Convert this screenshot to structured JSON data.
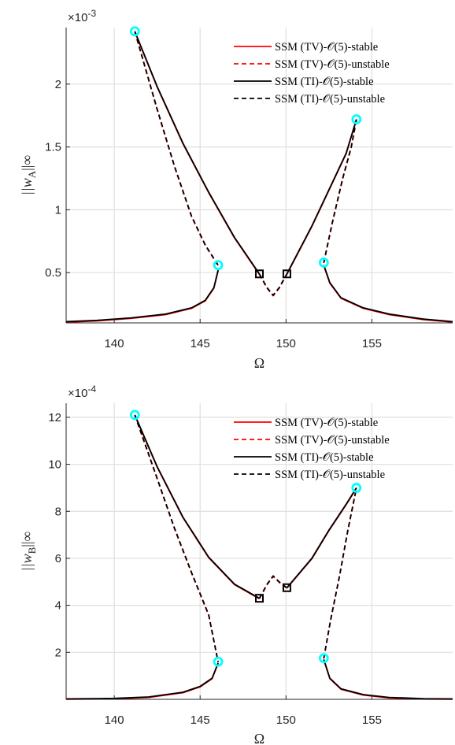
{
  "chart_data": [
    {
      "type": "line",
      "xlabel": "Ω",
      "ylabel": "||w_A||∞",
      "ylabel_main": "||w",
      "ylabel_sub": "A",
      "ylabel_tail": "||∞",
      "y_exponent_base": "×10",
      "y_exponent_power": "-3",
      "xlim": [
        137.2,
        159.7
      ],
      "ylim": [
        0.1,
        2.45
      ],
      "xticks": [
        140,
        145,
        150,
        155
      ],
      "yticks": [
        0.5,
        1,
        1.5,
        2
      ],
      "ytick_labels": [
        "0.5",
        "1",
        "1.5",
        "2"
      ],
      "grid": true,
      "legend_placement": "top-right",
      "legend": [
        {
          "label": "SSM (TV)-𝒪(5)-stable",
          "color": "#ff0000",
          "dash": "solid"
        },
        {
          "label": "SSM (TV)-𝒪(5)-unstable",
          "color": "#ff0000",
          "dash": "dashed"
        },
        {
          "label": "SSM (TI)-𝒪(5)-stable",
          "color": "#000000",
          "dash": "solid"
        },
        {
          "label": "SSM (TI)-𝒪(5)-unstable",
          "color": "#000000",
          "dash": "dashed"
        }
      ],
      "series": [
        {
          "name": "SSM (TV)-𝒪(5)-stable",
          "color": "#ff0000",
          "dash": "solid",
          "offset": [
            0,
            0.004
          ],
          "segments": [
            [
              [
                137.2,
                0.11
              ],
              [
                139,
                0.12
              ],
              [
                141,
                0.14
              ],
              [
                143,
                0.17
              ],
              [
                144.5,
                0.22
              ],
              [
                145.3,
                0.28
              ],
              [
                145.8,
                0.38
              ],
              [
                146.05,
                0.52
              ]
            ],
            [
              [
                141.2,
                2.42
              ],
              [
                142.5,
                1.98
              ],
              [
                144,
                1.53
              ],
              [
                145.5,
                1.14
              ],
              [
                147,
                0.78
              ],
              [
                148.45,
                0.49
              ]
            ],
            [
              [
                150.05,
                0.49
              ],
              [
                151.5,
                0.87
              ],
              [
                152.5,
                1.16
              ],
              [
                153.5,
                1.45
              ],
              [
                154.1,
                1.72
              ]
            ],
            [
              [
                152.2,
                0.56
              ],
              [
                152.55,
                0.42
              ],
              [
                153.2,
                0.3
              ],
              [
                154.5,
                0.22
              ],
              [
                156,
                0.17
              ],
              [
                158,
                0.13
              ],
              [
                159.7,
                0.11
              ]
            ]
          ]
        },
        {
          "name": "SSM (TV)-𝒪(5)-unstable",
          "color": "#ff0000",
          "dash": "dashed",
          "offset": [
            0,
            0.004
          ],
          "segments": [
            [
              [
                141.2,
                2.42
              ],
              [
                142.5,
                1.8
              ],
              [
                143.5,
                1.35
              ],
              [
                144.5,
                0.95
              ],
              [
                145.3,
                0.72
              ],
              [
                146.05,
                0.56
              ]
            ],
            [
              [
                148.45,
                0.49
              ],
              [
                148.9,
                0.38
              ],
              [
                149.25,
                0.32
              ],
              [
                149.6,
                0.38
              ],
              [
                150.05,
                0.49
              ]
            ],
            [
              [
                152.2,
                0.58
              ],
              [
                152.7,
                0.9
              ],
              [
                153.3,
                1.25
              ],
              [
                153.8,
                1.5
              ],
              [
                154.1,
                1.72
              ]
            ]
          ]
        },
        {
          "name": "SSM (TI)-𝒪(5)-stable",
          "color": "#000000",
          "dash": "solid",
          "offset": [
            0,
            0
          ],
          "segments": [
            [
              [
                137.2,
                0.11
              ],
              [
                139,
                0.12
              ],
              [
                141,
                0.14
              ],
              [
                143,
                0.17
              ],
              [
                144.5,
                0.22
              ],
              [
                145.3,
                0.28
              ],
              [
                145.8,
                0.38
              ],
              [
                146.05,
                0.52
              ]
            ],
            [
              [
                141.2,
                2.42
              ],
              [
                142.5,
                1.98
              ],
              [
                144,
                1.53
              ],
              [
                145.5,
                1.14
              ],
              [
                147,
                0.78
              ],
              [
                148.45,
                0.49
              ]
            ],
            [
              [
                150.05,
                0.49
              ],
              [
                151.5,
                0.87
              ],
              [
                152.5,
                1.16
              ],
              [
                153.5,
                1.45
              ],
              [
                154.1,
                1.72
              ]
            ],
            [
              [
                152.2,
                0.56
              ],
              [
                152.55,
                0.42
              ],
              [
                153.2,
                0.3
              ],
              [
                154.5,
                0.22
              ],
              [
                156,
                0.17
              ],
              [
                158,
                0.13
              ],
              [
                159.7,
                0.11
              ]
            ]
          ]
        },
        {
          "name": "SSM (TI)-𝒪(5)-unstable",
          "color": "#000000",
          "dash": "dashed",
          "offset": [
            0,
            0
          ],
          "segments": [
            [
              [
                141.2,
                2.42
              ],
              [
                142.5,
                1.8
              ],
              [
                143.5,
                1.35
              ],
              [
                144.5,
                0.95
              ],
              [
                145.3,
                0.72
              ],
              [
                146.05,
                0.56
              ]
            ],
            [
              [
                148.45,
                0.49
              ],
              [
                148.9,
                0.38
              ],
              [
                149.25,
                0.32
              ],
              [
                149.6,
                0.38
              ],
              [
                150.05,
                0.49
              ]
            ],
            [
              [
                152.2,
                0.58
              ],
              [
                152.7,
                0.9
              ],
              [
                153.3,
                1.25
              ],
              [
                153.8,
                1.5
              ],
              [
                154.1,
                1.72
              ]
            ]
          ]
        }
      ],
      "circle_markers": [
        [
          141.2,
          2.42
        ],
        [
          146.05,
          0.56
        ],
        [
          152.2,
          0.58
        ],
        [
          154.1,
          1.72
        ]
      ],
      "square_markers": [
        [
          148.45,
          0.49
        ],
        [
          150.05,
          0.49
        ]
      ]
    },
    {
      "type": "line",
      "xlabel": "Ω",
      "ylabel": "||w_B||∞",
      "ylabel_main": "||w",
      "ylabel_sub": "B",
      "ylabel_tail": "||∞",
      "y_exponent_base": "×10",
      "y_exponent_power": "-4",
      "xlim": [
        137.2,
        159.7
      ],
      "ylim": [
        0,
        12.6
      ],
      "xticks": [
        140,
        145,
        150,
        155
      ],
      "yticks": [
        2,
        4,
        6,
        8,
        10,
        12
      ],
      "ytick_labels": [
        "2",
        "4",
        "6",
        "8",
        "10",
        "12"
      ],
      "grid": true,
      "legend_placement": "top-right",
      "legend": [
        {
          "label": "SSM (TV)-𝒪(5)-stable",
          "color": "#ff0000",
          "dash": "solid"
        },
        {
          "label": "SSM (TV)-𝒪(5)-unstable",
          "color": "#ff0000",
          "dash": "dashed"
        },
        {
          "label": "SSM (TI)-𝒪(5)-stable",
          "color": "#000000",
          "dash": "solid"
        },
        {
          "label": "SSM (TI)-𝒪(5)-unstable",
          "color": "#000000",
          "dash": "dashed"
        }
      ],
      "series": [
        {
          "name": "SSM (TV)-𝒪(5)-stable",
          "color": "#ff0000",
          "dash": "solid",
          "offset": [
            0,
            0.02
          ],
          "segments": [
            [
              [
                137.2,
                0.02
              ],
              [
                140,
                0.04
              ],
              [
                142,
                0.1
              ],
              [
                144,
                0.3
              ],
              [
                145,
                0.55
              ],
              [
                145.7,
                0.9
              ],
              [
                146.05,
                1.55
              ]
            ],
            [
              [
                141.2,
                12.1
              ],
              [
                142.5,
                9.9
              ],
              [
                144,
                7.75
              ],
              [
                145.5,
                6.05
              ],
              [
                147,
                4.9
              ],
              [
                148.45,
                4.3
              ]
            ],
            [
              [
                150.05,
                4.75
              ],
              [
                151.5,
                6.0
              ],
              [
                152.5,
                7.2
              ],
              [
                153.5,
                8.3
              ],
              [
                154.1,
                9.0
              ]
            ],
            [
              [
                152.2,
                1.7
              ],
              [
                152.55,
                0.9
              ],
              [
                153.2,
                0.45
              ],
              [
                154.5,
                0.2
              ],
              [
                156,
                0.08
              ],
              [
                158,
                0.03
              ],
              [
                159.7,
                0.02
              ]
            ]
          ]
        },
        {
          "name": "SSM (TV)-𝒪(5)-unstable",
          "color": "#ff0000",
          "dash": "dashed",
          "offset": [
            0,
            0.02
          ],
          "segments": [
            [
              [
                141.2,
                12.1
              ],
              [
                142.5,
                9.4
              ],
              [
                143.5,
                7.3
              ],
              [
                144.5,
                5.4
              ],
              [
                145.5,
                3.6
              ],
              [
                146.05,
                1.6
              ]
            ],
            [
              [
                148.45,
                4.3
              ],
              [
                148.9,
                4.9
              ],
              [
                149.25,
                5.25
              ],
              [
                149.6,
                5.0
              ],
              [
                150.05,
                4.75
              ]
            ],
            [
              [
                152.2,
                1.75
              ],
              [
                152.6,
                3.4
              ],
              [
                153.1,
                5.2
              ],
              [
                153.6,
                7.2
              ],
              [
                154.1,
                9.0
              ]
            ]
          ]
        },
        {
          "name": "SSM (TI)-𝒪(5)-stable",
          "color": "#000000",
          "dash": "solid",
          "offset": [
            0,
            0
          ],
          "segments": [
            [
              [
                137.2,
                0.02
              ],
              [
                140,
                0.04
              ],
              [
                142,
                0.1
              ],
              [
                144,
                0.3
              ],
              [
                145,
                0.55
              ],
              [
                145.7,
                0.9
              ],
              [
                146.05,
                1.55
              ]
            ],
            [
              [
                141.2,
                12.1
              ],
              [
                142.5,
                9.9
              ],
              [
                144,
                7.75
              ],
              [
                145.5,
                6.05
              ],
              [
                147,
                4.9
              ],
              [
                148.45,
                4.3
              ]
            ],
            [
              [
                150.05,
                4.75
              ],
              [
                151.5,
                6.0
              ],
              [
                152.5,
                7.2
              ],
              [
                153.5,
                8.3
              ],
              [
                154.1,
                9.0
              ]
            ],
            [
              [
                152.2,
                1.7
              ],
              [
                152.55,
                0.9
              ],
              [
                153.2,
                0.45
              ],
              [
                154.5,
                0.2
              ],
              [
                156,
                0.08
              ],
              [
                158,
                0.03
              ],
              [
                159.7,
                0.02
              ]
            ]
          ]
        },
        {
          "name": "SSM (TI)-𝒪(5)-unstable",
          "color": "#000000",
          "dash": "dashed",
          "offset": [
            0,
            0
          ],
          "segments": [
            [
              [
                141.2,
                12.1
              ],
              [
                142.5,
                9.4
              ],
              [
                143.5,
                7.3
              ],
              [
                144.5,
                5.4
              ],
              [
                145.5,
                3.6
              ],
              [
                146.05,
                1.6
              ]
            ],
            [
              [
                148.45,
                4.3
              ],
              [
                148.9,
                4.9
              ],
              [
                149.25,
                5.25
              ],
              [
                149.6,
                5.0
              ],
              [
                150.05,
                4.75
              ]
            ],
            [
              [
                152.2,
                1.75
              ],
              [
                152.6,
                3.4
              ],
              [
                153.1,
                5.2
              ],
              [
                153.6,
                7.2
              ],
              [
                154.1,
                9.0
              ]
            ]
          ]
        }
      ],
      "circle_markers": [
        [
          141.2,
          12.1
        ],
        [
          146.05,
          1.6
        ],
        [
          152.2,
          1.75
        ],
        [
          154.1,
          9.0
        ]
      ],
      "square_markers": [
        [
          148.45,
          4.3
        ],
        [
          150.05,
          4.75
        ]
      ]
    }
  ]
}
